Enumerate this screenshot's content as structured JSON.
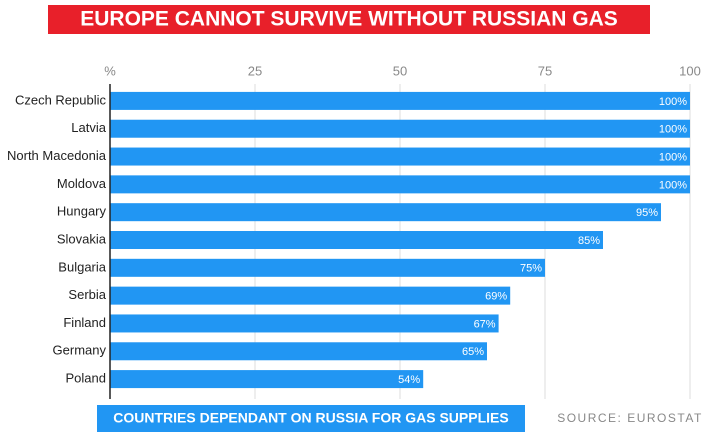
{
  "chart_data": {
    "type": "bar",
    "orientation": "horizontal",
    "title": "EUROPE CANNOT SURVIVE WITHOUT RUSSIAN GAS",
    "caption": "COUNTRIES DEPENDANT ON RUSSIA FOR GAS SUPPLIES",
    "source": "SOURCE: EUROSTAT",
    "categories": [
      "Czech Republic",
      "Latvia",
      "North Macedonia",
      "Moldova",
      "Hungary",
      "Slovakia",
      "Bulgaria",
      "Serbia",
      "Finland",
      "Germany",
      "Poland"
    ],
    "values": [
      100,
      100,
      100,
      100,
      95,
      85,
      75,
      69,
      67,
      65,
      54
    ],
    "value_labels": [
      "100%",
      "100%",
      "100%",
      "100%",
      "95%",
      "85%",
      "75%",
      "69%",
      "67%",
      "65%",
      "54%"
    ],
    "color": "#2196f3",
    "xlim": [
      0,
      100
    ],
    "xticks": [
      {
        "value": 0,
        "label": "%"
      },
      25,
      50,
      75,
      100
    ],
    "grid": true
  }
}
